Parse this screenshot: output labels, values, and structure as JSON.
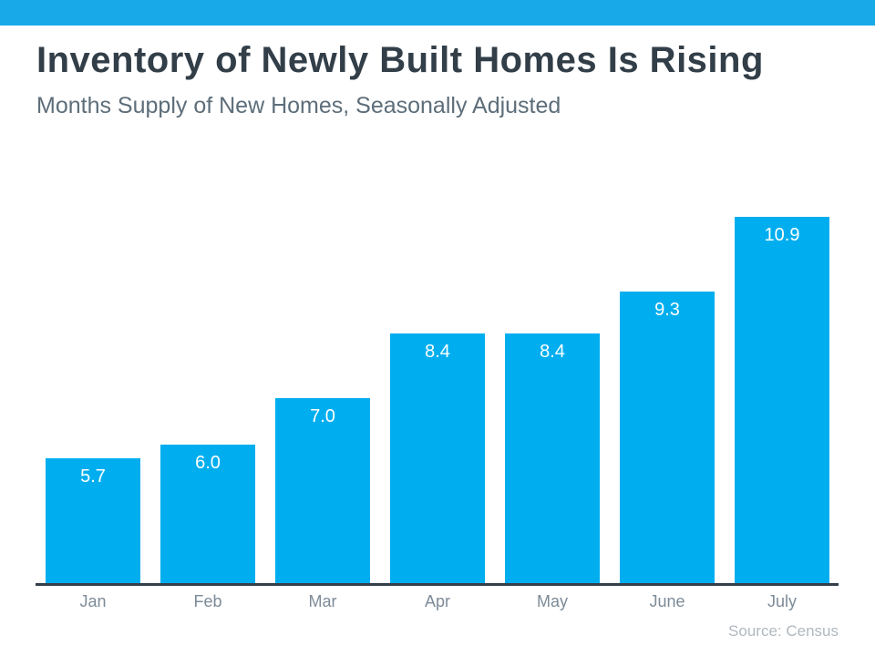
{
  "header": {
    "title": "Inventory of Newly Built Homes Is Rising",
    "subtitle": "Months Supply of New Homes, Seasonally Adjusted"
  },
  "footer": {
    "source": "Source: Census"
  },
  "colors": {
    "accent_bar": "#17A9E8",
    "bar_fill": "#00AEEF",
    "title_text": "#323E48",
    "subtitle_text": "#5D6E7A",
    "axis_line": "#343F4B",
    "axis_label_text": "#7D8B98",
    "bar_value_text": "#FFFFFF",
    "source_text": "#B0B8BF",
    "background": "#FFFFFF"
  },
  "chart_data": {
    "type": "bar",
    "title": "Inventory of Newly Built Homes Is Rising",
    "subtitle": "Months Supply of New Homes, Seasonally Adjusted",
    "categories": [
      "Jan",
      "Feb",
      "Mar",
      "Apr",
      "May",
      "June",
      "July"
    ],
    "values": [
      5.7,
      6.0,
      7.0,
      8.4,
      8.4,
      9.3,
      10.9
    ],
    "value_labels": [
      "5.7",
      "6.0",
      "7.0",
      "8.4",
      "8.4",
      "9.3",
      "10.9"
    ],
    "xlabel": "",
    "ylabel": "",
    "ylim": [
      3,
      12
    ],
    "grid": false,
    "legend": "none",
    "value_labels_position": "inside-top",
    "source": "Source: Census"
  }
}
